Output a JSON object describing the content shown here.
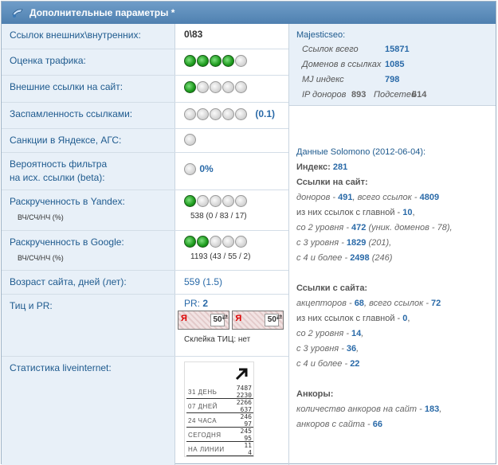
{
  "panel": {
    "title": "Дополнительные параметры *"
  },
  "rows": {
    "links": {
      "label": "Ссылок внешних\\внутренних:",
      "value": "0\\83"
    },
    "traffic": {
      "label": "Оценка трафика:",
      "rating": 4
    },
    "external": {
      "label": "Внешние ссылки на сайт:",
      "rating": 1
    },
    "spam": {
      "label": "Заспамленность ссылками:",
      "rating": 0,
      "score": "(0.1)"
    },
    "sanctions": {
      "label": "Санкции в Яндексе, АГС:"
    },
    "filter": {
      "label_line1": "Вероятность фильтра",
      "label_line2": "на исх. ссылки (beta):",
      "value": "0%"
    },
    "yandex": {
      "label": "Раскрученность в Yandex:",
      "sublabel": "ВЧ/СЧ/НЧ (%)",
      "rating": 1,
      "value": "538 (0 / 83 / 17)"
    },
    "google": {
      "label": "Раскрученность в Google:",
      "sublabel": "ВЧ/СЧ/НЧ (%)",
      "rating": 2,
      "value": "1193 (43 / 55 / 2)"
    },
    "age": {
      "label": "Возраст сайта, дней (лет):",
      "value": "559 (1.5)"
    },
    "tic": {
      "label": "Тиц и PR:",
      "pr_label": "PR:",
      "pr_value": "2",
      "badge_letter": "Я",
      "badge_num": "50",
      "glue": "Склейка ТИЦ: нет"
    },
    "li": {
      "label": "Статистика liveinternet:"
    }
  },
  "liveinternet": [
    {
      "key": "31 ДЕНЬ",
      "v1": "7487",
      "v2": "2230"
    },
    {
      "key": "07 ДНЕЙ",
      "v1": "2266",
      "v2": "637"
    },
    {
      "key": "24 ЧАСА",
      "v1": "246",
      "v2": "97"
    },
    {
      "key": "СЕГОДНЯ",
      "v1": "245",
      "v2": "95"
    },
    {
      "key": "НА ЛИНИИ",
      "v1": "11",
      "v2": "4"
    }
  ],
  "majestic": {
    "title": "Majesticseo:",
    "total_label": "Ссылок всего",
    "total": "15871",
    "domains_label": "Доменов в ссылках",
    "domains": "1085",
    "mj_label": "MJ индекс",
    "mj": "798",
    "ip_label": "IP доноров",
    "ip": "893",
    "subnets_label": "Подсетей",
    "subnets": "614"
  },
  "solomono": {
    "head": "Данные Solomono (2012-06-04):",
    "index_label": "Индекс:",
    "index": "281",
    "in_title": "Ссылки на сайт:",
    "donors_label": "доноров",
    "donors": "491",
    "all_links_label": "всего ссылок",
    "all_links": "4809",
    "from_main_label": "из них ссылок с главной",
    "from_main": "10",
    "level2_label": "со 2 уровня",
    "level2": "472",
    "level2_extra": "(уник. доменов - 78),",
    "level3_label": "с 3 уровня",
    "level3": "1829",
    "level3_extra": "(201),",
    "level4_label": "с 4 и более",
    "level4": "2498",
    "level4_extra": "(246)",
    "out_title": "Ссылки с сайта:",
    "acceptors_label": "акцепторов",
    "acceptors": "68",
    "out_all_label": "всего ссылок",
    "out_all": "72",
    "out_main_label": "из них ссылок с главной",
    "out_main": "0",
    "out_l2_label": "со 2 уровня",
    "out_l2": "14",
    "out_l3_label": "с 3 уровня",
    "out_l3": "36",
    "out_l4_label": "с 4 и более",
    "out_l4": "22",
    "anchors_title": "Анкоры:",
    "anchors_in_label": "количество анкоров на сайт",
    "anchors_in": "183",
    "anchors_out_label": "анкоров с сайта",
    "anchors_out": "66"
  }
}
